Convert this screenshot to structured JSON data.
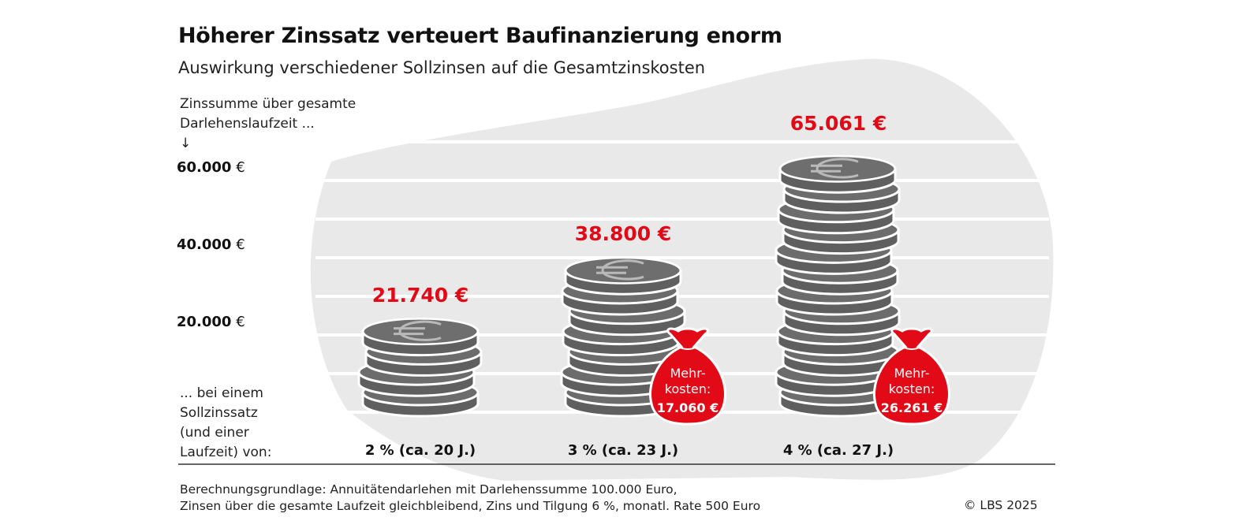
{
  "title": "Höherer Zinssatz verteuert Baufinanzierung enorm",
  "subtitle": "Auswirkung verschiedener Sollzinsen auf die Gesamtzinskosten",
  "chart_data": {
    "type": "bar",
    "title": "Höherer Zinssatz verteuert Baufinanzierung enorm",
    "subtitle": "Auswirkung verschiedener Sollzinsen auf die Gesamtzinskosten",
    "ylabel_lines": [
      "Zinssumme über gesamte",
      "Darlehenslaufzeit ...",
      "↓"
    ],
    "xlabel_lines": [
      "... bei einem",
      "Sollzinssatz",
      "(und einer",
      "Laufzeit) von:"
    ],
    "yticks": [
      {
        "value": 20000,
        "number": "20.000",
        "unit": "€"
      },
      {
        "value": 40000,
        "number": "40.000",
        "unit": "€"
      },
      {
        "value": 60000,
        "number": "60.000",
        "unit": "€"
      }
    ],
    "ylim": [
      0,
      70000
    ],
    "categories": [
      "2 % (ca. 20 J.)",
      "3 % (ca. 23 J.)",
      "4 % (ca. 27 J.)"
    ],
    "values": [
      21740,
      38800,
      65061
    ],
    "value_labels": [
      "21.740 €",
      "38.800 €",
      "65.061 €"
    ],
    "annotations": [
      null,
      {
        "lines": [
          "Mehr-",
          "kosten:"
        ],
        "amount": "17.060 €"
      },
      {
        "lines": [
          "Mehr-",
          "kosten:"
        ],
        "amount": "26.261 €"
      }
    ],
    "colors": {
      "coin": "#5f5f5f",
      "coin_top": "#707070",
      "accent": "#e20a16",
      "background_shape": "#e9e9e9"
    }
  },
  "footnote_lines": [
    "Berechnungsgrundlage: Annuitätendarlehen mit Darlehenssumme 100.000 Euro,",
    "Zinsen über die gesamte Laufzeit gleichbleibend, Zins und Tilgung 6 %, monatl. Rate 500 Euro"
  ],
  "copyright": "© LBS 2025"
}
